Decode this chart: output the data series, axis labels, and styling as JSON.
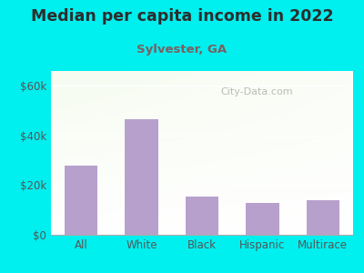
{
  "title": "Median per capita income in 2022",
  "subtitle": "Sylvester, GA",
  "categories": [
    "All",
    "White",
    "Black",
    "Hispanic",
    "Multirace"
  ],
  "values": [
    28000,
    46500,
    15500,
    13000,
    14000
  ],
  "bar_color": "#b8a0cc",
  "outer_bg": "#00efef",
  "title_color": "#2d2d2d",
  "subtitle_color": "#7a6060",
  "tick_color": "#555555",
  "yticks": [
    0,
    20000,
    40000,
    60000
  ],
  "ytick_labels": [
    "$0",
    "$20k",
    "$40k",
    "$60k"
  ],
  "ylim": [
    0,
    66000
  ],
  "watermark": "City-Data.com",
  "grid_color": "#cccccc"
}
